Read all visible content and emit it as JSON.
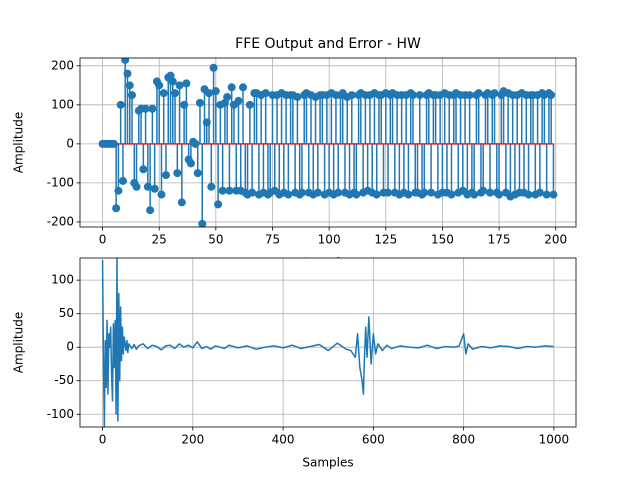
{
  "chart_data": [
    {
      "type": "stem",
      "title": "FFE Output and Error - HW",
      "xlabel": "Samples",
      "ylabel": "Amplitude",
      "color": "#1f77b4",
      "baseline_color": "#d62728",
      "grid": true,
      "xlim": [
        -9.95,
        208.95
      ],
      "ylim": [
        -213,
        220
      ],
      "xticks": [
        0,
        25,
        50,
        75,
        100,
        125,
        150,
        175,
        200
      ],
      "yticks": [
        -200,
        -100,
        0,
        100,
        200
      ],
      "x": [
        0,
        1,
        2,
        3,
        4,
        5,
        6,
        7,
        8,
        9,
        10,
        11,
        12,
        13,
        14,
        15,
        16,
        17,
        18,
        19,
        20,
        21,
        22,
        23,
        24,
        25,
        26,
        27,
        28,
        29,
        30,
        31,
        32,
        33,
        34,
        35,
        36,
        37,
        38,
        39,
        40,
        41,
        42,
        43,
        44,
        45,
        46,
        47,
        48,
        49,
        50,
        51,
        52,
        53,
        54,
        55,
        56,
        57,
        58,
        59,
        60,
        61,
        62,
        63,
        64,
        65,
        66,
        67,
        68,
        69,
        70,
        71,
        72,
        73,
        74,
        75,
        76,
        77,
        78,
        79,
        80,
        81,
        82,
        83,
        84,
        85,
        86,
        87,
        88,
        89,
        90,
        91,
        92,
        93,
        94,
        95,
        96,
        97,
        98,
        99,
        100,
        101,
        102,
        103,
        104,
        105,
        106,
        107,
        108,
        109,
        110,
        111,
        112,
        113,
        114,
        115,
        116,
        117,
        118,
        119,
        120,
        121,
        122,
        123,
        124,
        125,
        126,
        127,
        128,
        129,
        130,
        131,
        132,
        133,
        134,
        135,
        136,
        137,
        138,
        139,
        140,
        141,
        142,
        143,
        144,
        145,
        146,
        147,
        148,
        149,
        150,
        151,
        152,
        153,
        154,
        155,
        156,
        157,
        158,
        159,
        160,
        161,
        162,
        163,
        164,
        165,
        166,
        167,
        168,
        169,
        170,
        171,
        172,
        173,
        174,
        175,
        176,
        177,
        178,
        179,
        180,
        181,
        182,
        183,
        184,
        185,
        186,
        187,
        188,
        189,
        190,
        191,
        192,
        193,
        194,
        195,
        196,
        197,
        198,
        199
      ],
      "values": [
        0,
        0,
        0,
        0,
        0,
        0,
        -165,
        -120,
        100,
        -95,
        215,
        180,
        150,
        125,
        -100,
        -110,
        85,
        90,
        -65,
        90,
        -110,
        -170,
        90,
        -115,
        160,
        150,
        -130,
        130,
        -80,
        170,
        175,
        160,
        130,
        -75,
        150,
        -150,
        100,
        155,
        -40,
        -50,
        5,
        0,
        -75,
        105,
        -205,
        140,
        55,
        130,
        -110,
        195,
        135,
        -155,
        100,
        -120,
        105,
        120,
        -120,
        145,
        100,
        -120,
        110,
        -120,
        145,
        -125,
        -130,
        100,
        -125,
        130,
        130,
        -130,
        125,
        -125,
        130,
        -130,
        -125,
        125,
        -120,
        125,
        -130,
        130,
        -125,
        125,
        -130,
        125,
        125,
        -125,
        120,
        -130,
        -125,
        125,
        130,
        -125,
        125,
        -130,
        120,
        -125,
        125,
        125,
        -130,
        125,
        -125,
        130,
        -130,
        125,
        -125,
        125,
        130,
        -125,
        120,
        -130,
        125,
        -125,
        -130,
        125,
        130,
        -125,
        125,
        -120,
        125,
        -125,
        130,
        -130,
        125,
        125,
        -125,
        130,
        -125,
        125,
        130,
        -125,
        125,
        -130,
        125,
        -125,
        125,
        -130,
        130,
        125,
        -125,
        -125,
        125,
        -130,
        -125,
        125,
        130,
        -125,
        125,
        125,
        -130,
        125,
        -125,
        130,
        -125,
        125,
        -130,
        125,
        130,
        -125,
        125,
        -120,
        125,
        -130,
        125,
        -125,
        -130,
        125,
        130,
        -125,
        -120,
        125,
        130,
        -125,
        125,
        130,
        -125,
        -130,
        125,
        135,
        -125,
        130,
        -135,
        125,
        -130,
        125,
        -125,
        130,
        -125,
        125,
        -130,
        125,
        125,
        -130,
        125,
        -125,
        130,
        125,
        -130,
        130,
        125,
        -130
      ]
    },
    {
      "type": "line",
      "xlabel": "Samples",
      "ylabel": "Amplitude",
      "color": "#1f77b4",
      "grid": true,
      "xlim": [
        -49.95,
        1048.95
      ],
      "ylim": [
        -119,
        133
      ],
      "xticks": [
        0,
        200,
        400,
        600,
        800,
        1000
      ],
      "yticks": [
        -100,
        -50,
        0,
        50,
        100
      ],
      "x": [
        0,
        2,
        4,
        6,
        8,
        10,
        12,
        14,
        16,
        18,
        20,
        22,
        24,
        26,
        28,
        30,
        32,
        34,
        36,
        38,
        40,
        42,
        44,
        46,
        48,
        50,
        52,
        54,
        56,
        58,
        60,
        65,
        70,
        75,
        80,
        90,
        100,
        110,
        120,
        130,
        140,
        150,
        160,
        170,
        180,
        190,
        200,
        210,
        220,
        230,
        240,
        250,
        260,
        270,
        280,
        290,
        300,
        320,
        340,
        360,
        380,
        400,
        420,
        440,
        460,
        480,
        500,
        520,
        540,
        550,
        560,
        565,
        570,
        575,
        578,
        580,
        583,
        586,
        590,
        595,
        600,
        605,
        610,
        620,
        630,
        640,
        660,
        680,
        700,
        720,
        740,
        760,
        780,
        790,
        800,
        805,
        810,
        820,
        840,
        860,
        880,
        900,
        920,
        940,
        960,
        980,
        999
      ],
      "values": [
        130,
        -20,
        -119,
        10,
        -60,
        40,
        -70,
        20,
        0,
        30,
        -40,
        -80,
        35,
        -30,
        40,
        -100,
        133,
        -110,
        80,
        -50,
        60,
        -20,
        30,
        -10,
        15,
        5,
        -5,
        10,
        -8,
        5,
        3,
        -2,
        4,
        -3,
        2,
        5,
        -2,
        3,
        1,
        -4,
        2,
        3,
        -2,
        5,
        0,
        3,
        -1,
        8,
        -2,
        1,
        -3,
        2,
        0,
        -2,
        3,
        1,
        -1,
        2,
        -3,
        0,
        2,
        -1,
        3,
        -2,
        1,
        4,
        -5,
        6,
        -3,
        -5,
        -15,
        20,
        -30,
        -50,
        -70,
        -20,
        30,
        -15,
        45,
        -25,
        20,
        -10,
        5,
        -5,
        3,
        -2,
        2,
        0,
        -1,
        3,
        -2,
        1,
        0,
        2,
        20,
        -10,
        5,
        -3,
        1,
        -1,
        2,
        1,
        -2,
        1,
        0,
        2,
        1
      ]
    }
  ]
}
